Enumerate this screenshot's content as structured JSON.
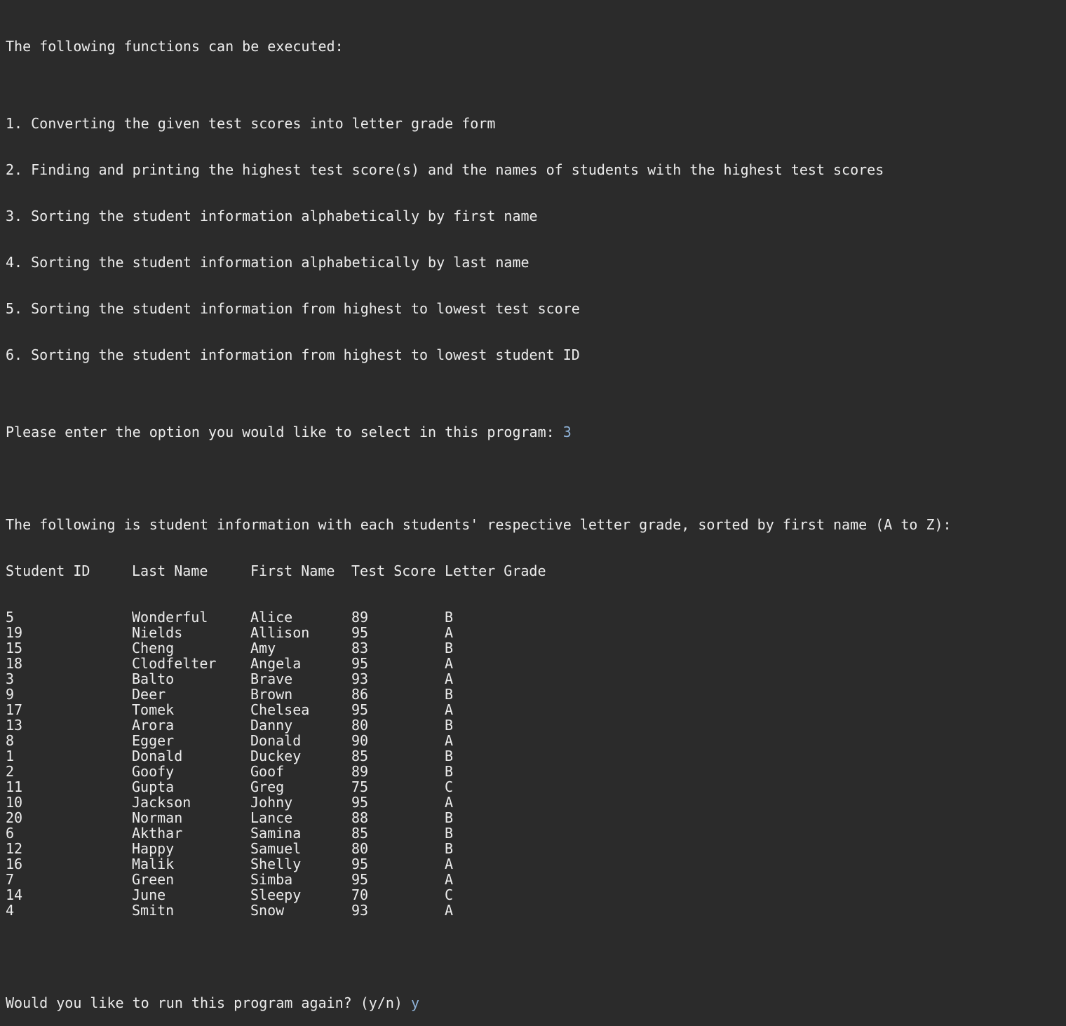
{
  "menu": {
    "header": "The following functions can be executed:",
    "options": [
      "1. Converting the given test scores into letter grade form",
      "2. Finding and printing the highest test score(s) and the names of students with the highest test scores",
      "3. Sorting the student information alphabetically by first name",
      "4. Sorting the student information alphabetically by last name",
      "5. Sorting the student information from highest to lowest test score",
      "6. Sorting the student information from highest to lowest student ID"
    ],
    "prompt": "Please enter the option you would like to select in this program: ",
    "selected": "3"
  },
  "result": {
    "heading": "The following is student information with each students' respective letter grade, sorted by first name (A to Z):",
    "columns": [
      "Student ID",
      "Last Name",
      "First Name",
      "Test Score",
      "Letter Grade"
    ],
    "rows": [
      [
        "5",
        "Wonderful",
        "Alice",
        "89",
        "B"
      ],
      [
        "19",
        "Nields",
        "Allison",
        "95",
        "A"
      ],
      [
        "15",
        "Cheng",
        "Amy",
        "83",
        "B"
      ],
      [
        "18",
        "Clodfelter",
        "Angela",
        "95",
        "A"
      ],
      [
        "3",
        "Balto",
        "Brave",
        "93",
        "A"
      ],
      [
        "9",
        "Deer",
        "Brown",
        "86",
        "B"
      ],
      [
        "17",
        "Tomek",
        "Chelsea",
        "95",
        "A"
      ],
      [
        "13",
        "Arora",
        "Danny",
        "80",
        "B"
      ],
      [
        "8",
        "Egger",
        "Donald",
        "90",
        "A"
      ],
      [
        "1",
        "Donald",
        "Duckey",
        "85",
        "B"
      ],
      [
        "2",
        "Goofy",
        "Goof",
        "89",
        "B"
      ],
      [
        "11",
        "Gupta",
        "Greg",
        "75",
        "C"
      ],
      [
        "10",
        "Jackson",
        "Johny",
        "95",
        "A"
      ],
      [
        "20",
        "Norman",
        "Lance",
        "88",
        "B"
      ],
      [
        "6",
        "Akthar",
        "Samina",
        "85",
        "B"
      ],
      [
        "12",
        "Happy",
        "Samuel",
        "80",
        "B"
      ],
      [
        "16",
        "Malik",
        "Shelly",
        "95",
        "A"
      ],
      [
        "7",
        "Green",
        "Simba",
        "95",
        "A"
      ],
      [
        "14",
        "June",
        "Sleepy",
        "70",
        "C"
      ],
      [
        "4",
        "Smitn",
        "Snow",
        "93",
        "A"
      ]
    ]
  },
  "rerun": {
    "prompt": "Would you like to run this program again? (y/n) ",
    "answer": "y"
  },
  "colors": {
    "background": "#2b2b2b",
    "text": "#ececec",
    "input": "#8fb3d9"
  }
}
